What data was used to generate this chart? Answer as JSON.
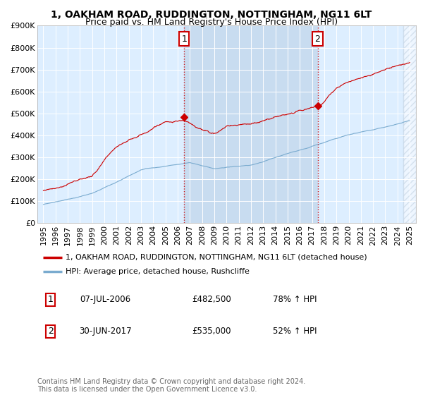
{
  "title": "1, OAKHAM ROAD, RUDDINGTON, NOTTINGHAM, NG11 6LT",
  "subtitle": "Price paid vs. HM Land Registry's House Price Index (HPI)",
  "ylim": [
    0,
    900000
  ],
  "yticks": [
    0,
    100000,
    200000,
    300000,
    400000,
    500000,
    600000,
    700000,
    800000,
    900000
  ],
  "ytick_labels": [
    "£0",
    "£100K",
    "£200K",
    "£300K",
    "£400K",
    "£500K",
    "£600K",
    "£700K",
    "£800K",
    "£900K"
  ],
  "plot_bg_color": "#ddeeff",
  "highlight_bg_color": "#c8dcf0",
  "hatch_bg_color": "#e8eef5",
  "red_line_color": "#cc0000",
  "blue_line_color": "#7aabcf",
  "legend_label_red": "1, OAKHAM ROAD, RUDDINGTON, NOTTINGHAM, NG11 6LT (detached house)",
  "legend_label_blue": "HPI: Average price, detached house, Rushcliffe",
  "transaction1_date": "07-JUL-2006",
  "transaction1_price": "£482,500",
  "transaction1_pct": "78% ↑ HPI",
  "transaction2_date": "30-JUN-2017",
  "transaction2_price": "£535,000",
  "transaction2_pct": "52% ↑ HPI",
  "footer": "Contains HM Land Registry data © Crown copyright and database right 2024.\nThis data is licensed under the Open Government Licence v3.0.",
  "marker1_y": 482500,
  "marker2_y": 535000,
  "t1_x": 2006.54,
  "t2_x": 2017.46,
  "xlim_left": 1994.5,
  "xlim_right": 2025.5,
  "x_start": 1995,
  "x_end": 2025,
  "title_fontsize": 10,
  "subtitle_fontsize": 9,
  "tick_fontsize": 8,
  "legend_fontsize": 8,
  "table_fontsize": 8.5,
  "footer_fontsize": 7
}
